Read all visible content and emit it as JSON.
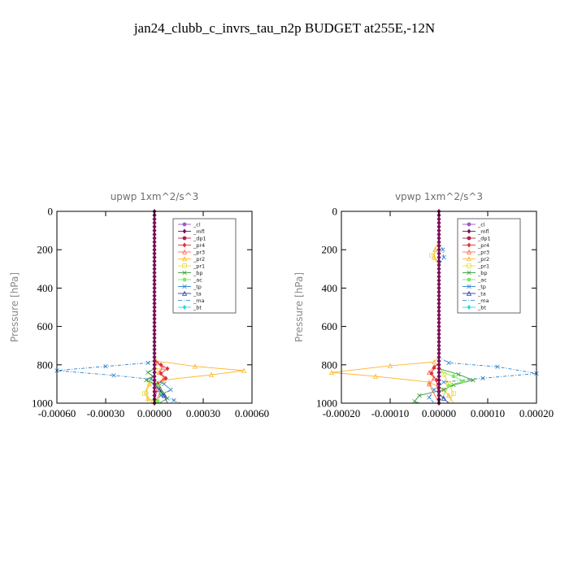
{
  "title": "jan24_clubb_c_invrs_tau_n2p  BUDGET at255E,-12N",
  "legend_entries": [
    {
      "name": "_cl",
      "color": "#9b59d0",
      "marker": "circle"
    },
    {
      "name": "_mfl",
      "color": "#7a0f5a",
      "marker": "diamond"
    },
    {
      "name": "_dp1",
      "color": "#b0204a",
      "marker": "circle"
    },
    {
      "name": "_pr4",
      "color": "#e0303c",
      "marker": "diamond"
    },
    {
      "name": "_pr3",
      "color": "#ff6a4a",
      "marker": "triangle"
    },
    {
      "name": "_pr2",
      "color": "#ffb52a",
      "marker": "triangle"
    },
    {
      "name": "_pr1",
      "color": "#e9df3a",
      "marker": "square"
    },
    {
      "name": "_bp",
      "color": "#3a9a3a",
      "marker": "x"
    },
    {
      "name": "_ac",
      "color": "#7ee85a",
      "marker": "circle"
    },
    {
      "name": "_tp",
      "color": "#2a80c8",
      "marker": "x"
    },
    {
      "name": "_ta",
      "color": "#2a3ab0",
      "marker": "triangle"
    },
    {
      "name": "_ma",
      "color": "#4aa0e0",
      "marker": "none"
    },
    {
      "name": "_bt",
      "color": "#2ad8e8",
      "marker": "diamond"
    }
  ],
  "chart_data": [
    {
      "type": "line",
      "title": "upwp   1xm^2/s^3",
      "ylabel": "Pressure [hPa]",
      "xlim": [
        -0.0006,
        0.0006
      ],
      "ylim": [
        1000,
        0
      ],
      "xticks": [
        "-0.00060",
        "-0.00030",
        "0.00000",
        "0.00030",
        "0.00060"
      ],
      "xtick_values": [
        -0.0006,
        -0.0003,
        0,
        0.0003,
        0.0006
      ],
      "yticks": [
        "0",
        "200",
        "400",
        "600",
        "800",
        "1000"
      ],
      "ytick_values": [
        0,
        200,
        400,
        600,
        800,
        1000
      ],
      "series": [
        {
          "name": "_pr2",
          "points": [
            [
              0,
              0
            ],
            [
              0,
              760
            ],
            [
              1e-05,
              780
            ],
            [
              0.00025,
              808
            ],
            [
              0.00055,
              830
            ],
            [
              0.00035,
              852
            ],
            [
              5e-05,
              880
            ],
            [
              -3e-05,
              900
            ],
            [
              -5e-05,
              940
            ],
            [
              -4e-05,
              975
            ],
            [
              2e-05,
              1000
            ]
          ]
        },
        {
          "name": "_pr1",
          "points": [
            [
              0,
              0
            ],
            [
              0,
              800
            ],
            [
              2e-05,
              830
            ],
            [
              -3e-05,
              880
            ],
            [
              -6e-05,
              950
            ],
            [
              -3e-05,
              990
            ],
            [
              0,
              1000
            ]
          ]
        },
        {
          "name": "_pr3",
          "points": [
            [
              0,
              0
            ],
            [
              0,
              770
            ],
            [
              2e-05,
              790
            ],
            [
              5e-05,
              815
            ],
            [
              3e-05,
              840
            ],
            [
              6e-05,
              870
            ],
            [
              2e-05,
              900
            ],
            [
              4e-05,
              940
            ],
            [
              0,
              1000
            ]
          ]
        },
        {
          "name": "_pr4",
          "points": [
            [
              0,
              0
            ],
            [
              0,
              780
            ],
            [
              4e-05,
              800
            ],
            [
              8e-05,
              820
            ],
            [
              4e-05,
              845
            ],
            [
              7e-05,
              870
            ],
            [
              2e-05,
              900
            ],
            [
              0,
              1000
            ]
          ]
        },
        {
          "name": "_bp",
          "points": [
            [
              0,
              0
            ],
            [
              0,
              820
            ],
            [
              -4e-05,
              840
            ],
            [
              -1e-05,
              860
            ],
            [
              -5e-05,
              880
            ],
            [
              3e-05,
              910
            ],
            [
              6e-05,
              950
            ],
            [
              8e-05,
              975
            ],
            [
              3e-05,
              1000
            ]
          ]
        },
        {
          "name": "_ac",
          "points": [
            [
              0,
              0
            ],
            [
              0,
              870
            ],
            [
              2e-05,
              910
            ],
            [
              4e-05,
              950
            ],
            [
              2e-05,
              990
            ],
            [
              0,
              1000
            ]
          ]
        },
        {
          "name": "_tp",
          "points": [
            [
              0,
              0
            ],
            [
              0,
              776
            ],
            [
              -4e-05,
              790
            ],
            [
              -0.0003,
              808
            ],
            [
              -0.0006,
              830
            ],
            [
              -0.00025,
              855
            ],
            [
              -2e-05,
              875
            ],
            [
              6e-05,
              900
            ],
            [
              0.0001,
              930
            ],
            [
              4e-05,
              960
            ],
            [
              0.00012,
              985
            ],
            [
              0.00016,
              1000
            ]
          ]
        },
        {
          "name": "_ta",
          "points": [
            [
              0,
              0
            ],
            [
              0,
              900
            ],
            [
              3e-05,
              930
            ],
            [
              6e-05,
              960
            ],
            [
              8e-05,
              1000
            ]
          ]
        },
        {
          "name": "_ma",
          "points": [
            [
              0,
              0
            ],
            [
              0,
              1000
            ]
          ]
        },
        {
          "name": "_bt",
          "points": [
            [
              0,
              0
            ],
            [
              0,
              1000
            ]
          ]
        },
        {
          "name": "_dp1",
          "points": [
            [
              0,
              0
            ],
            [
              0,
              1000
            ]
          ]
        },
        {
          "name": "_mfl",
          "points": [
            [
              0,
              0
            ],
            [
              0,
              1000
            ]
          ]
        }
      ]
    },
    {
      "type": "line",
      "title": "vpwp   1xm^2/s^3",
      "ylabel": "Pressure [hPa]",
      "xlim": [
        -0.0002,
        0.0002
      ],
      "ylim": [
        1000,
        0
      ],
      "xticks": [
        "-0.00020",
        "-0.00010",
        "0.00000",
        "0.00010",
        "0.00020"
      ],
      "xtick_values": [
        -0.0002,
        -0.0001,
        0,
        0.0001,
        0.0002
      ],
      "yticks": [
        "0",
        "200",
        "400",
        "600",
        "800",
        "1000"
      ],
      "ytick_values": [
        0,
        200,
        400,
        600,
        800,
        1000
      ],
      "series": [
        {
          "name": "_pr2",
          "points": [
            [
              0,
              0
            ],
            [
              0,
              150
            ],
            [
              -8e-06,
              200
            ],
            [
              -1e-05,
              240
            ],
            [
              0,
              280
            ],
            [
              0,
              760
            ],
            [
              -1e-05,
              785
            ],
            [
              -0.0001,
              805
            ],
            [
              -0.00022,
              840
            ],
            [
              -0.00013,
              860
            ],
            [
              -2e-05,
              890
            ],
            [
              1e-05,
              930
            ],
            [
              2e-05,
              960
            ],
            [
              3e-05,
              1000
            ]
          ]
        },
        {
          "name": "_pr1",
          "points": [
            [
              0,
              0
            ],
            [
              0,
              200
            ],
            [
              -1.5e-05,
              230
            ],
            [
              0,
              260
            ],
            [
              0,
              800
            ],
            [
              1e-05,
              850
            ],
            [
              2e-05,
              900
            ],
            [
              3e-05,
              950
            ],
            [
              2e-05,
              1000
            ]
          ]
        },
        {
          "name": "_tp",
          "points": [
            [
              0,
              0
            ],
            [
              0,
              150
            ],
            [
              8e-06,
              200
            ],
            [
              1e-05,
              240
            ],
            [
              0,
              280
            ],
            [
              0,
              760
            ],
            [
              2e-05,
              790
            ],
            [
              0.00012,
              810
            ],
            [
              0.0002,
              845
            ],
            [
              9e-05,
              870
            ],
            [
              1e-05,
              890
            ],
            [
              -1e-05,
              930
            ],
            [
              -2e-05,
              970
            ],
            [
              -1e-05,
              1000
            ]
          ]
        },
        {
          "name": "_bp",
          "points": [
            [
              0,
              0
            ],
            [
              0,
              820
            ],
            [
              4e-05,
              850
            ],
            [
              7e-05,
              880
            ],
            [
              3e-05,
              905
            ],
            [
              1e-05,
              930
            ],
            [
              -4e-05,
              960
            ],
            [
              -5e-05,
              990
            ],
            [
              -4e-05,
              1000
            ]
          ]
        },
        {
          "name": "_ac",
          "points": [
            [
              0,
              0
            ],
            [
              0,
              830
            ],
            [
              3e-05,
              860
            ],
            [
              5e-05,
              885
            ],
            [
              2e-05,
              910
            ],
            [
              0,
              1000
            ]
          ]
        },
        {
          "name": "_pr3",
          "points": [
            [
              0,
              0
            ],
            [
              0,
              790
            ],
            [
              -1e-05,
              810
            ],
            [
              -2e-05,
              840
            ],
            [
              -1e-05,
              870
            ],
            [
              -2e-05,
              900
            ],
            [
              0,
              1000
            ]
          ]
        },
        {
          "name": "_pr4",
          "points": [
            [
              0,
              0
            ],
            [
              0,
              790
            ],
            [
              -1e-05,
              815
            ],
            [
              -1.5e-05,
              845
            ],
            [
              -5e-06,
              880
            ],
            [
              0,
              1000
            ]
          ]
        },
        {
          "name": "_ta",
          "points": [
            [
              0,
              0
            ],
            [
              0,
              950
            ],
            [
              1e-05,
              975
            ],
            [
              2e-05,
              1000
            ]
          ]
        },
        {
          "name": "_ma",
          "points": [
            [
              0,
              0
            ],
            [
              0,
              1000
            ]
          ]
        },
        {
          "name": "_bt",
          "points": [
            [
              0,
              0
            ],
            [
              0,
              1000
            ]
          ]
        },
        {
          "name": "_dp1",
          "points": [
            [
              0,
              0
            ],
            [
              0,
              1000
            ]
          ]
        },
        {
          "name": "_mfl",
          "points": [
            [
              0,
              0
            ],
            [
              0,
              1000
            ]
          ]
        }
      ]
    }
  ]
}
